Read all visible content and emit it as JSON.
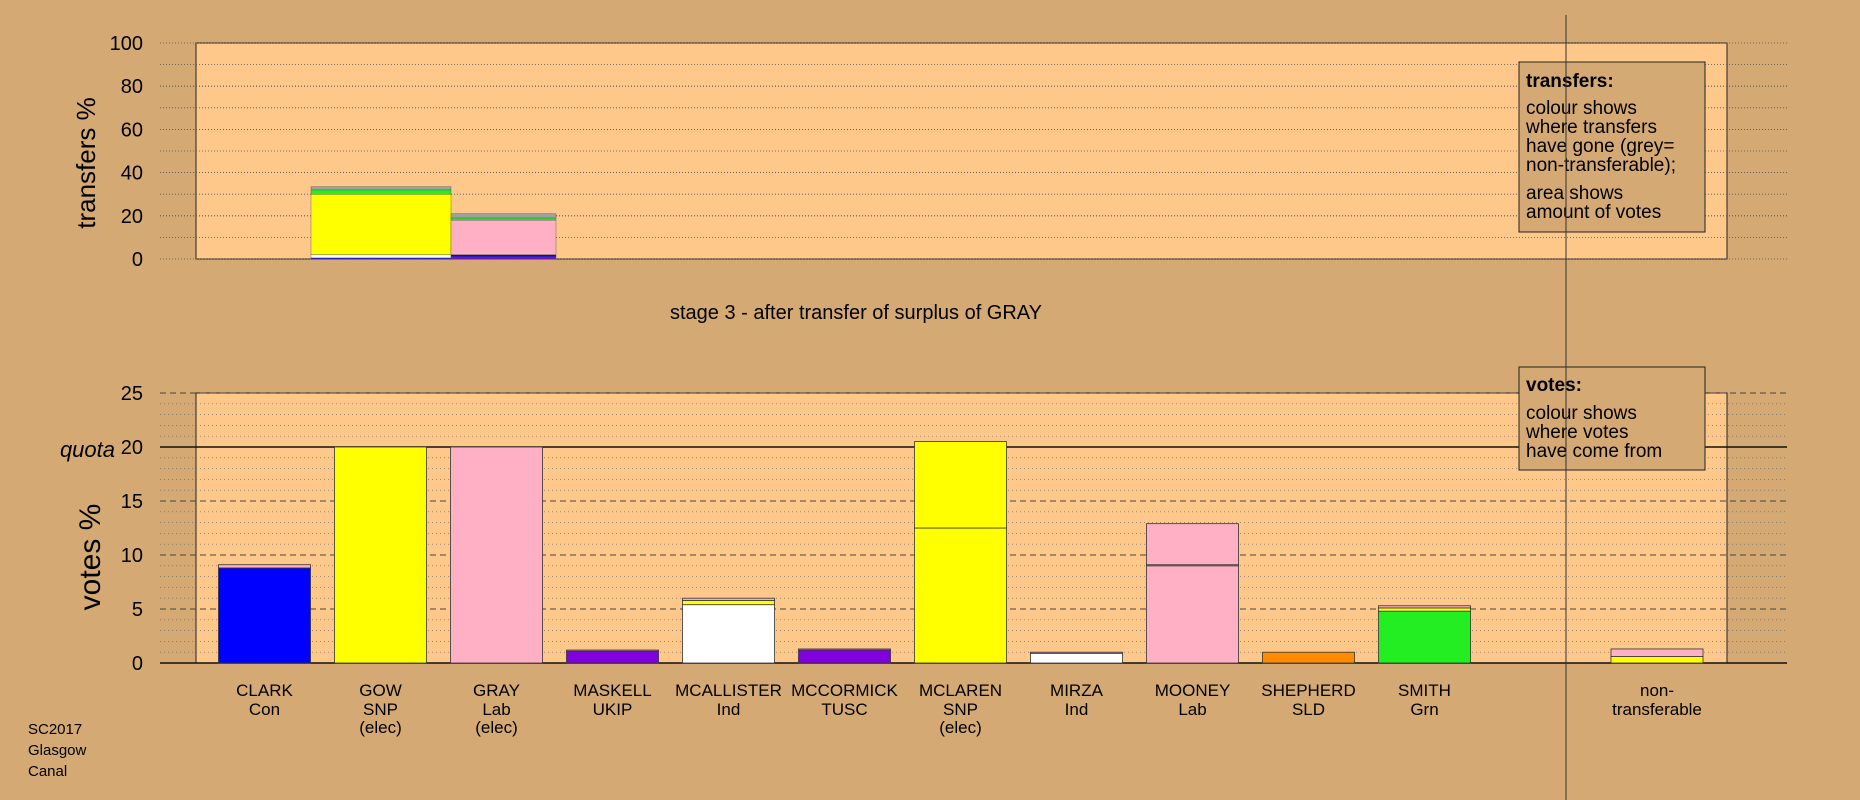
{
  "colors": {
    "page_bg": "#d4a973",
    "plot_bg": "#fec88a",
    "Con": "#0000ff",
    "SNP": "#ffff00",
    "Lab": "#ffb0c4",
    "UKIP": "#8000e0",
    "Ind": "#ffffff",
    "TUSC": "#8000e0",
    "SLD": "#ff8c00",
    "Grn": "#22ee22",
    "nontransferable": "#a0a0a0"
  },
  "transfers_panel": {
    "ylabel": "transfers %",
    "yticks": [
      "0",
      "20",
      "40",
      "60",
      "80",
      "100"
    ],
    "ylim": [
      0,
      100
    ],
    "legend": {
      "title": "transfers:",
      "line1": "colour shows",
      "line2": "where transfers",
      "line3": "have gone (grey=",
      "line4": "non-transferable);",
      "line5": "area shows",
      "line6": "amount of votes"
    }
  },
  "stage_caption": "stage 3 - after transfer of surplus of GRAY",
  "votes_panel": {
    "ylabel": "votes %",
    "yticks": [
      "0",
      "5",
      "10",
      "15",
      "20",
      "25"
    ],
    "quota_label": "quota",
    "ylim": [
      0,
      25
    ],
    "legend": {
      "title": "votes:",
      "line1": "colour shows",
      "line2": "where votes",
      "line3": "have come from"
    }
  },
  "candidates": [
    {
      "name": "CLARK",
      "party": "Con",
      "extra": ""
    },
    {
      "name": "GOW",
      "party": "SNP",
      "extra": "(elec)"
    },
    {
      "name": "GRAY",
      "party": "Lab",
      "extra": "(elec)"
    },
    {
      "name": "MASKELL",
      "party": "UKIP",
      "extra": ""
    },
    {
      "name": "MCALLISTER",
      "party": "Ind",
      "extra": ""
    },
    {
      "name": "MCCORMICK",
      "party": "TUSC",
      "extra": ""
    },
    {
      "name": "MCLAREN",
      "party": "SNP",
      "extra": "(elec)"
    },
    {
      "name": "MIRZA",
      "party": "Ind",
      "extra": ""
    },
    {
      "name": "MOONEY",
      "party": "Lab",
      "extra": ""
    },
    {
      "name": "SHEPHERD",
      "party": "SLD",
      "extra": ""
    },
    {
      "name": "SMITH",
      "party": "Grn",
      "extra": ""
    }
  ],
  "nontransferable_label": {
    "line1": "non-",
    "line2": "transferable"
  },
  "footer": {
    "line1": "SC2017",
    "line2": "Glasgow",
    "line3": "Canal"
  },
  "chart_data": [
    {
      "type": "bar",
      "ylabel": "transfers %",
      "ylim": [
        0,
        100
      ],
      "stacked": true,
      "bars": [
        {
          "source": "GOW",
          "segments": [
            {
              "to": "Con",
              "value": 0.5
            },
            {
              "to": "Ind",
              "value": 1.5
            },
            {
              "to": "SNP",
              "value": 28
            },
            {
              "to": "Grn",
              "value": 2
            },
            {
              "to": "nontransferable",
              "value": 1.5
            }
          ]
        },
        {
          "source": "GRAY",
          "segments": [
            {
              "to": "UKIP",
              "value": 1
            },
            {
              "to": "Con",
              "value": 1
            },
            {
              "to": "Lab",
              "value": 16
            },
            {
              "to": "Grn",
              "value": 1
            },
            {
              "to": "nontransferable",
              "value": 2
            }
          ]
        }
      ]
    },
    {
      "type": "bar",
      "ylabel": "votes %",
      "ylim": [
        0,
        25
      ],
      "quota": 20,
      "stacked": true,
      "categories": [
        "CLARK",
        "GOW",
        "GRAY",
        "MASKELL",
        "MCALLISTER",
        "MCCORMICK",
        "MCLAREN",
        "MIRZA",
        "MOONEY",
        "SHEPHERD",
        "SMITH",
        "non-transferable"
      ],
      "bars": [
        {
          "candidate": "CLARK",
          "segments": [
            {
              "from": "Con",
              "value": 8.8
            },
            {
              "from": "Lab",
              "value": 0.3
            }
          ]
        },
        {
          "candidate": "GOW",
          "segments": [
            {
              "from": "SNP",
              "value": 20
            }
          ]
        },
        {
          "candidate": "GRAY",
          "segments": [
            {
              "from": "Lab",
              "value": 20
            }
          ]
        },
        {
          "candidate": "MASKELL",
          "segments": [
            {
              "from": "UKIP",
              "value": 1.1
            },
            {
              "from": "Lab",
              "value": 0.1
            }
          ]
        },
        {
          "candidate": "MCALLISTER",
          "segments": [
            {
              "from": "Ind",
              "value": 5.4
            },
            {
              "from": "SNP",
              "value": 0.4
            },
            {
              "from": "Lab",
              "value": 0.2
            }
          ]
        },
        {
          "candidate": "MCCORMICK",
          "segments": [
            {
              "from": "TUSC",
              "value": 1.2
            },
            {
              "from": "Lab",
              "value": 0.1
            }
          ]
        },
        {
          "candidate": "MCLAREN",
          "segments": [
            {
              "from": "SNP",
              "value": 12.5
            },
            {
              "from": "SNP",
              "value": 8.0
            }
          ]
        },
        {
          "candidate": "MIRZA",
          "segments": [
            {
              "from": "Ind",
              "value": 0.9
            },
            {
              "from": "Lab",
              "value": 0.1
            }
          ]
        },
        {
          "candidate": "MOONEY",
          "segments": [
            {
              "from": "Lab",
              "value": 9.0
            },
            {
              "from": "SNP",
              "value": 0.1
            },
            {
              "from": "Lab",
              "value": 3.8
            }
          ]
        },
        {
          "candidate": "SHEPHERD",
          "segments": [
            {
              "from": "SLD",
              "value": 1.0
            }
          ]
        },
        {
          "candidate": "SMITH",
          "segments": [
            {
              "from": "Grn",
              "value": 4.8
            },
            {
              "from": "SNP",
              "value": 0.3
            },
            {
              "from": "Lab",
              "value": 0.2
            }
          ]
        },
        {
          "candidate": "non-transferable",
          "segments": [
            {
              "from": "SNP",
              "value": 0.6
            },
            {
              "from": "Lab",
              "value": 0.7
            }
          ]
        }
      ]
    }
  ]
}
